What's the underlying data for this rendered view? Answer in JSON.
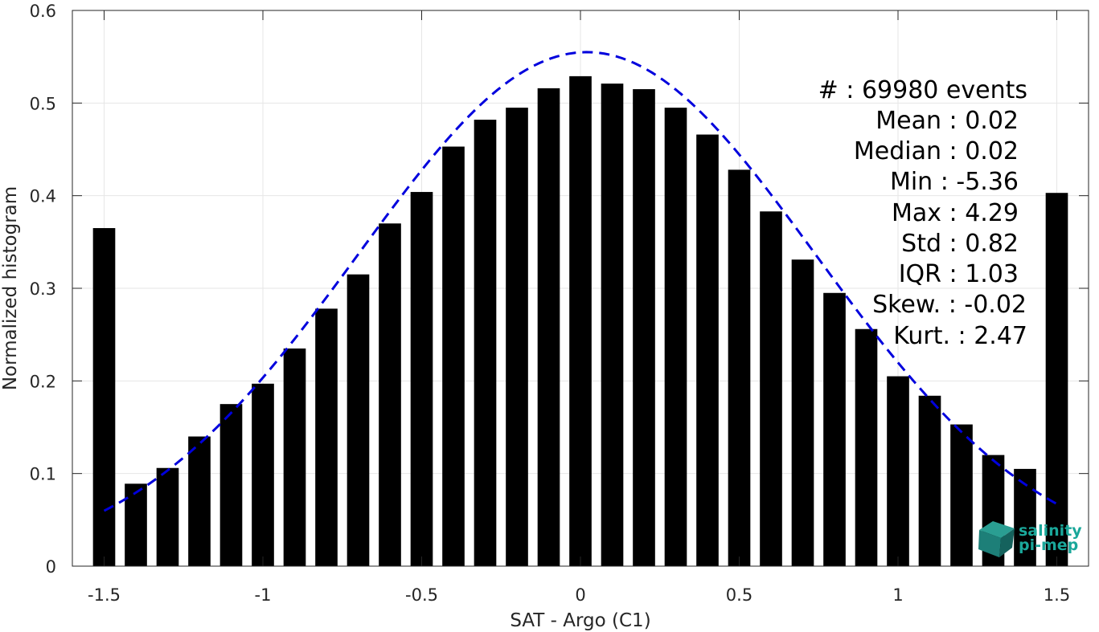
{
  "chart_data": {
    "type": "bar",
    "xlabel": "SAT - Argo (C1)",
    "ylabel": "Normalized histogram",
    "xlim": [
      -1.6,
      1.6
    ],
    "ylim": [
      0,
      0.6
    ],
    "x_ticks": [
      -1.5,
      -1,
      -0.5,
      0,
      0.5,
      1,
      1.5
    ],
    "x_tick_labels": [
      "-1.5",
      "-1",
      "-0.5",
      "0",
      "0.5",
      "1",
      "1.5"
    ],
    "y_ticks": [
      0,
      0.1,
      0.2,
      0.3,
      0.4,
      0.5,
      0.6
    ],
    "y_tick_labels": [
      "0",
      "0.1",
      "0.2",
      "0.3",
      "0.4",
      "0.5",
      "0.6"
    ],
    "grid": true,
    "bar_width": 0.07,
    "bar_color": "#000000",
    "bars": {
      "x": [
        -1.5,
        -1.4,
        -1.3,
        -1.2,
        -1.1,
        -1.0,
        -0.9,
        -0.8,
        -0.7,
        -0.6,
        -0.5,
        -0.4,
        -0.3,
        -0.2,
        -0.1,
        0.0,
        0.1,
        0.2,
        0.3,
        0.4,
        0.5,
        0.6,
        0.7,
        0.8,
        0.9,
        1.0,
        1.1,
        1.2,
        1.3,
        1.4,
        1.5
      ],
      "values": [
        0.365,
        0.089,
        0.106,
        0.14,
        0.175,
        0.197,
        0.235,
        0.278,
        0.315,
        0.37,
        0.404,
        0.453,
        0.482,
        0.495,
        0.516,
        0.529,
        0.521,
        0.515,
        0.495,
        0.466,
        0.428,
        0.383,
        0.331,
        0.295,
        0.256,
        0.205,
        0.184,
        0.153,
        0.12,
        0.105,
        0.403
      ]
    },
    "fit_curve": {
      "style": "dashed",
      "color": "#0000dd",
      "mean": 0.02,
      "std": 0.72,
      "peak": 0.555,
      "x_range": [
        -1.5,
        1.5
      ]
    },
    "annotations": [
      "#  : 69980 events",
      "Mean : 0.02",
      "Median : 0.02",
      "Min : -5.36",
      "Max : 4.29",
      "Std : 0.82",
      "IQR : 1.03",
      "Skew. : -0.02",
      "Kurt. : 2.47"
    ],
    "logo": {
      "line1": "salinity",
      "line2": "pi-mep",
      "color": "#1aa79a"
    }
  }
}
